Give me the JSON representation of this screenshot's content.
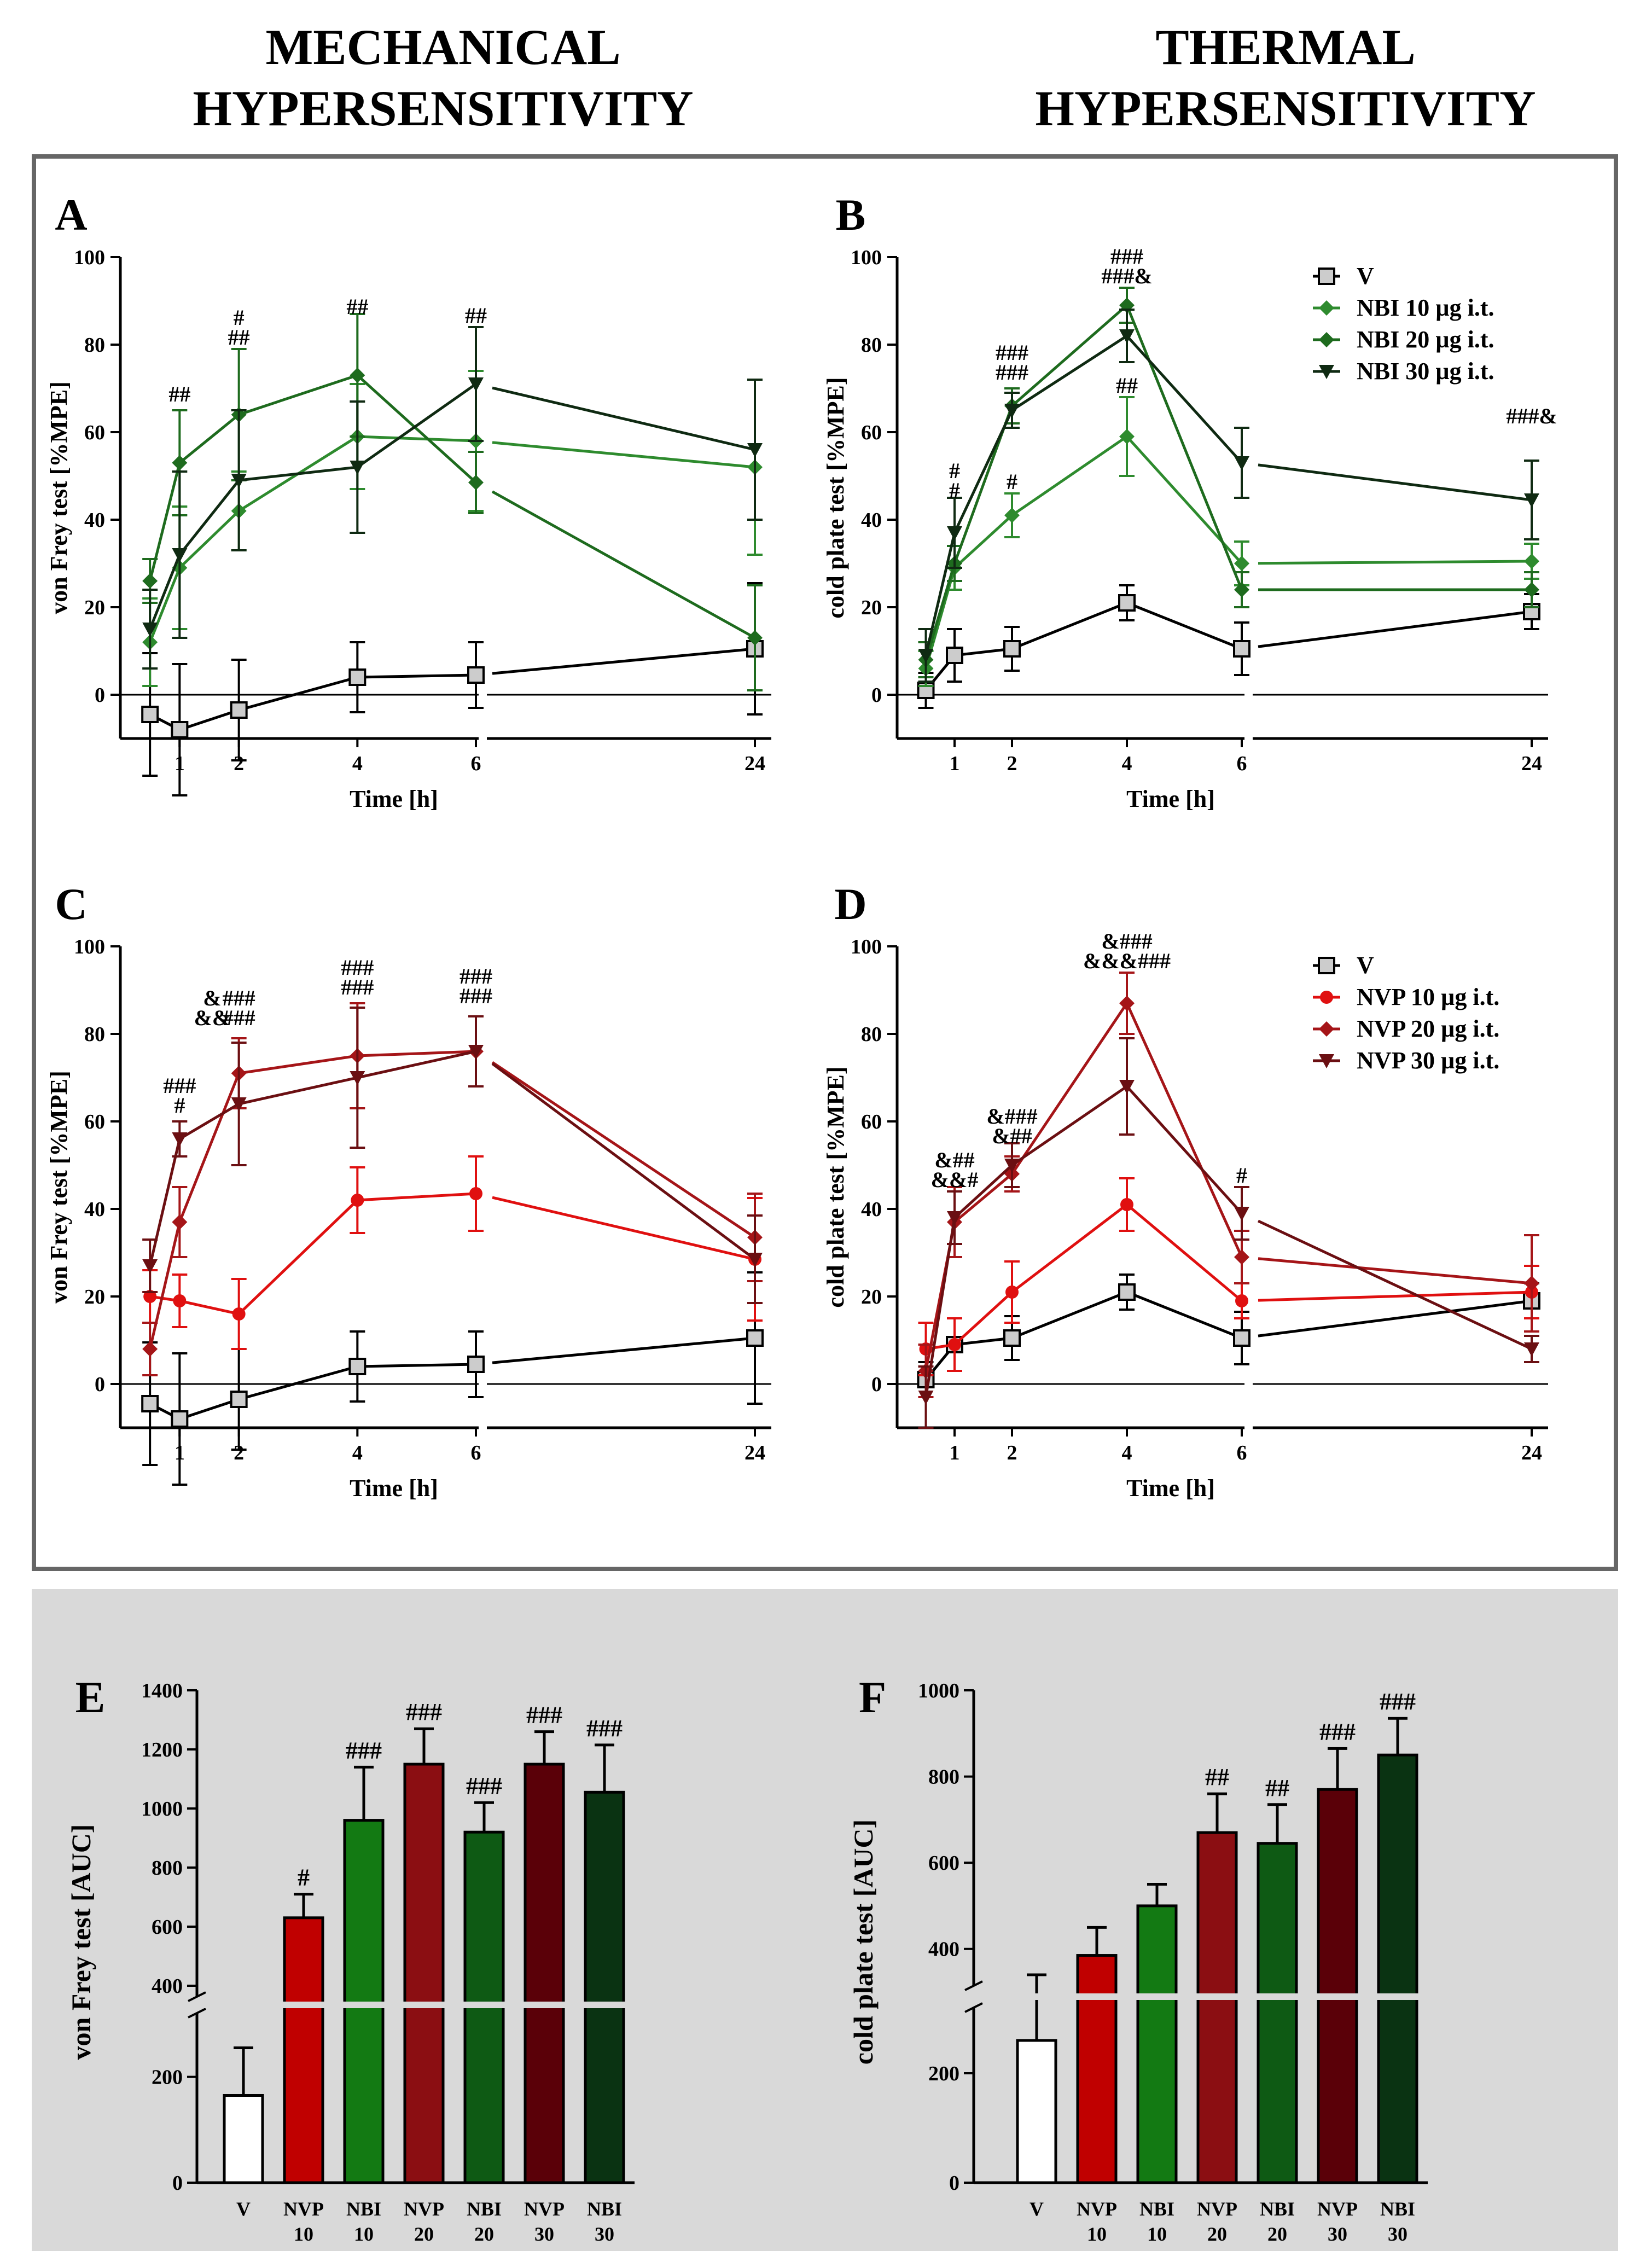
{
  "headers": {
    "left_line1": "MECHANICAL",
    "left_line2": "HYPERSENSITIVITY",
    "right_line1": "THERMAL",
    "right_line2": "HYPERSENSITIVITY"
  },
  "colors": {
    "vehicle": "#000000",
    "vehicle_fill": "#cccccc",
    "nbi10": "#2e8b2e",
    "nbi20": "#1e6b1e",
    "nbi30": "#0f2a12",
    "nvp10": "#e01010",
    "nvp20": "#a51518",
    "nvp30": "#6b0f12",
    "sig_green": "#2e8b2e",
    "sig_red": "#c0141c"
  },
  "chart_data": [
    {
      "panel": "A",
      "type": "line",
      "title": "",
      "xlabel": "Time [h]",
      "ylabel": "von Frey test [%MPE]",
      "ylim": [
        -10,
        100
      ],
      "yticks": [
        0,
        20,
        40,
        60,
        80,
        100
      ],
      "xticks": [
        1,
        2,
        4,
        6,
        24
      ],
      "axis_break_after_x": 6,
      "series": [
        {
          "name": "V",
          "color": "vehicle",
          "marker": "square",
          "x": [
            0.5,
            1,
            2,
            4,
            6,
            24
          ],
          "values": [
            -4.5,
            -8,
            -3.5,
            4,
            4.5,
            10.5
          ],
          "err": [
            14,
            15,
            11.5,
            8,
            7.5,
            15
          ]
        },
        {
          "name": "NBI 10 µg i.t.",
          "color": "nbi10",
          "marker": "diamond",
          "x": [
            0.5,
            1,
            2,
            4,
            6,
            24
          ],
          "values": [
            12,
            29,
            42,
            59,
            58,
            52
          ],
          "err": [
            10,
            14,
            9,
            12,
            16,
            20
          ]
        },
        {
          "name": "NBI 20 µg i.t.",
          "color": "nbi20",
          "marker": "diamond",
          "x": [
            0.5,
            1,
            2,
            4,
            6,
            24
          ],
          "values": [
            26,
            53,
            64,
            73,
            48.5,
            13
          ],
          "err": [
            5,
            12,
            15,
            14,
            7,
            12
          ]
        },
        {
          "name": "NBI 30 µg i.t.",
          "color": "nbi30",
          "marker": "triangle-down",
          "x": [
            0.5,
            1,
            2,
            4,
            6,
            24
          ],
          "values": [
            15,
            32,
            49,
            52,
            71,
            56
          ],
          "err": [
            9,
            19,
            16,
            15,
            13,
            16
          ]
        }
      ],
      "annotations": [
        {
          "x": 1,
          "y": 67,
          "lines": [
            "##"
          ],
          "color": "sig_green"
        },
        {
          "x": 2,
          "y": 80,
          "lines": [
            "#",
            "##"
          ],
          "color": "sig_green"
        },
        {
          "x": 4,
          "y": 87,
          "lines": [
            "##"
          ],
          "color": "sig_green"
        },
        {
          "x": 6,
          "y": 85,
          "lines": [
            "##"
          ],
          "color": "sig_green"
        }
      ]
    },
    {
      "panel": "B",
      "type": "line",
      "title": "",
      "xlabel": "Time [h]",
      "ylabel": "cold plate test [%MPE]",
      "ylim": [
        -10,
        100
      ],
      "yticks": [
        0,
        20,
        40,
        60,
        80,
        100
      ],
      "xticks": [
        1,
        2,
        4,
        6,
        24
      ],
      "axis_break_after_x": 6,
      "legend": [
        "V",
        "NBI 10 µg i.t.",
        "NBI 20 µg i.t.",
        "NBI 30 µg i.t."
      ],
      "series": [
        {
          "name": "V",
          "color": "vehicle",
          "marker": "square",
          "x": [
            0.5,
            1,
            2,
            4,
            6,
            24
          ],
          "values": [
            1,
            9,
            10.5,
            21,
            10.5,
            19
          ],
          "err": [
            4,
            6,
            5,
            4,
            6,
            4
          ]
        },
        {
          "name": "NBI 10 µg i.t.",
          "color": "nbi10",
          "marker": "diamond",
          "x": [
            0.5,
            1,
            2,
            4,
            6,
            24
          ],
          "values": [
            6,
            29,
            41,
            59,
            30,
            30.5
          ],
          "err": [
            4,
            5,
            5,
            9,
            5,
            4
          ]
        },
        {
          "name": "NBI 20 µg i.t.",
          "color": "nbi20",
          "marker": "diamond",
          "x": [
            0.5,
            1,
            2,
            4,
            6,
            24
          ],
          "values": [
            8,
            30,
            66,
            89,
            24,
            24
          ],
          "err": [
            4,
            4,
            4,
            4,
            4,
            4
          ]
        },
        {
          "name": "NBI 30 µg i.t.",
          "color": "nbi30",
          "marker": "triangle-down",
          "x": [
            0.5,
            1,
            2,
            4,
            6,
            24
          ],
          "values": [
            9,
            37,
            65,
            82,
            53,
            44.5
          ],
          "err": [
            6,
            8,
            4,
            6,
            8,
            9
          ]
        }
      ],
      "annotations": [
        {
          "x": 1,
          "y": 45,
          "lines": [
            "#",
            "#"
          ],
          "color": "sig_green"
        },
        {
          "x": 2,
          "y": 72,
          "lines": [
            "###",
            "###"
          ],
          "color": "sig_green"
        },
        {
          "x": 2,
          "y": 47,
          "lines": [
            "#"
          ],
          "color": "sig_green"
        },
        {
          "x": 4,
          "y": 94,
          "lines": [
            "###",
            "###&"
          ],
          "color": "sig_green"
        },
        {
          "x": 4,
          "y": 69,
          "lines": [
            "##"
          ],
          "color": "sig_green"
        },
        {
          "x": 6.35,
          "y": 62,
          "lines": [
            "###&"
          ],
          "color": "sig_green"
        }
      ]
    },
    {
      "panel": "C",
      "type": "line",
      "title": "",
      "xlabel": "Time [h]",
      "ylabel": "von Frey test [%MPE]",
      "ylim": [
        -10,
        100
      ],
      "yticks": [
        0,
        20,
        40,
        60,
        80,
        100
      ],
      "xticks": [
        1,
        2,
        4,
        6,
        24
      ],
      "axis_break_after_x": 6,
      "series": [
        {
          "name": "V",
          "color": "vehicle",
          "marker": "square",
          "x": [
            0.5,
            1,
            2,
            4,
            6,
            24
          ],
          "values": [
            -4.5,
            -8,
            -3.5,
            4,
            4.5,
            10.5
          ],
          "err": [
            14,
            15,
            11.5,
            8,
            7.5,
            15
          ]
        },
        {
          "name": "NVP 10 µg i.t.",
          "color": "nvp10",
          "marker": "circle",
          "x": [
            0.5,
            1,
            2,
            4,
            6,
            24
          ],
          "values": [
            20,
            19,
            16,
            42,
            43.5,
            28.5
          ],
          "err": [
            6,
            6,
            8,
            7.5,
            8.5,
            14
          ]
        },
        {
          "name": "NVP 20 µg i.t.",
          "color": "nvp20",
          "marker": "diamond",
          "x": [
            0.5,
            1,
            2,
            4,
            6,
            24
          ],
          "values": [
            8,
            37,
            71,
            75,
            76,
            33.5
          ],
          "err": [
            6,
            8,
            8,
            12,
            8,
            10
          ]
        },
        {
          "name": "NVP 30 µg i.t.",
          "color": "nvp30",
          "marker": "triangle-down",
          "x": [
            0.5,
            1,
            2,
            4,
            6,
            24
          ],
          "values": [
            27,
            56,
            64,
            70,
            76,
            28.5
          ],
          "err": [
            6,
            4,
            14,
            16,
            8,
            10
          ]
        }
      ],
      "annotations": [
        {
          "x": 1,
          "y": 62,
          "lines": [
            "###",
            "#"
          ],
          "color": "sig_red"
        },
        {
          "x": 1.55,
          "y": 82,
          "lines": [
            "&",
            "&&"
          ],
          "color": "sig_red"
        },
        {
          "x": 2,
          "y": 82,
          "lines": [
            "###",
            "###"
          ],
          "color": "sig_red"
        },
        {
          "x": 4,
          "y": 89,
          "lines": [
            "###",
            "###"
          ],
          "color": "sig_red"
        },
        {
          "x": 6,
          "y": 87,
          "lines": [
            "###",
            "###"
          ],
          "color": "sig_red"
        }
      ]
    },
    {
      "panel": "D",
      "type": "line",
      "title": "",
      "xlabel": "Time [h]",
      "ylabel": "cold plate test [%MPE]",
      "ylim": [
        -10,
        100
      ],
      "yticks": [
        0,
        20,
        40,
        60,
        80,
        100
      ],
      "xticks": [
        1,
        2,
        4,
        6,
        24
      ],
      "axis_break_after_x": 6,
      "legend": [
        "V",
        "NVP 10 µg i.t.",
        "NVP 20 µg i.t.",
        "NVP 30 µg i.t."
      ],
      "series": [
        {
          "name": "V",
          "color": "vehicle",
          "marker": "square",
          "x": [
            0.5,
            1,
            2,
            4,
            6,
            24
          ],
          "values": [
            1,
            9,
            10.5,
            21,
            10.5,
            19
          ],
          "err": [
            4,
            6,
            5,
            4,
            6,
            4
          ]
        },
        {
          "name": "NVP 10 µg i.t.",
          "color": "nvp10",
          "marker": "circle",
          "x": [
            0.5,
            1,
            2,
            4,
            6,
            24
          ],
          "values": [
            8,
            9,
            21,
            41,
            19,
            21
          ],
          "err": [
            6,
            6,
            7,
            6,
            4,
            6
          ]
        },
        {
          "name": "NVP 20 µg i.t.",
          "color": "nvp20",
          "marker": "diamond",
          "x": [
            0.5,
            1,
            2,
            4,
            6,
            24
          ],
          "values": [
            3,
            37,
            48,
            87,
            29,
            23
          ],
          "err": [
            6,
            8,
            4,
            7,
            6,
            11
          ]
        },
        {
          "name": "NVP 30 µg i.t.",
          "color": "nvp30",
          "marker": "triangle-down",
          "x": [
            0.5,
            1,
            2,
            4,
            6,
            24
          ],
          "values": [
            -3,
            38,
            50,
            68,
            39,
            8
          ],
          "err": [
            7,
            6,
            5,
            11,
            6,
            3
          ]
        }
      ],
      "annotations": [
        {
          "x": 1,
          "y": 45,
          "lines": [
            "&##",
            "&&#"
          ],
          "color": "sig_red"
        },
        {
          "x": 2,
          "y": 55,
          "lines": [
            "&###",
            "&##"
          ],
          "color": "sig_red"
        },
        {
          "x": 4,
          "y": 95,
          "lines": [
            "&###",
            "&&&###"
          ],
          "color": "sig_red"
        },
        {
          "x": 6,
          "y": 46,
          "lines": [
            "#"
          ],
          "color": "sig_red"
        }
      ]
    },
    {
      "panel": "E",
      "type": "bar",
      "title": "",
      "xlabel": "",
      "ylabel": "von Frey test [AUC]",
      "categories": [
        [
          "V"
        ],
        [
          "NVP",
          "10"
        ],
        [
          "NBI",
          "10"
        ],
        [
          "NVP",
          "20"
        ],
        [
          "NBI",
          "20"
        ],
        [
          "NVP",
          "30"
        ],
        [
          "NBI",
          "30"
        ]
      ],
      "values": [
        165,
        630,
        960,
        1150,
        920,
        1150,
        1055
      ],
      "err": [
        90,
        80,
        180,
        120,
        100,
        110,
        160
      ],
      "bar_colors": [
        "#ffffff",
        "#c00000",
        "#137a13",
        "#8b0e12",
        "#0e5a14",
        "#5a0008",
        "#0a3312"
      ],
      "axis_break": [
        300,
        400
      ],
      "yticks_low": [
        0,
        200
      ],
      "yticks_high": [
        400,
        600,
        800,
        1000,
        1200,
        1400
      ],
      "ylim": [
        0,
        1400
      ],
      "annotations": [
        "",
        "#",
        "###",
        "###",
        "###",
        "###",
        "###"
      ]
    },
    {
      "panel": "F",
      "type": "bar",
      "title": "",
      "xlabel": "",
      "ylabel": "cold plate test [AUC]",
      "categories": [
        [
          "V"
        ],
        [
          "NVP",
          "10"
        ],
        [
          "NBI",
          "10"
        ],
        [
          "NVP",
          "20"
        ],
        [
          "NBI",
          "20"
        ],
        [
          "NVP",
          "30"
        ],
        [
          "NBI",
          "30"
        ]
      ],
      "values": [
        260,
        385,
        500,
        670,
        645,
        770,
        850
      ],
      "err": [
        80,
        65,
        50,
        90,
        90,
        95,
        85
      ],
      "bar_colors": [
        "#ffffff",
        "#c00000",
        "#137a13",
        "#8b0e12",
        "#0e5a14",
        "#5a0008",
        "#0a3312"
      ],
      "axis_break": [
        300,
        340
      ],
      "yticks_low": [
        0,
        200
      ],
      "yticks_high": [
        400,
        600,
        800,
        1000
      ],
      "ylim": [
        0,
        1000
      ],
      "annotations": [
        "",
        "",
        "",
        "##",
        "##",
        "###",
        "###"
      ]
    }
  ]
}
